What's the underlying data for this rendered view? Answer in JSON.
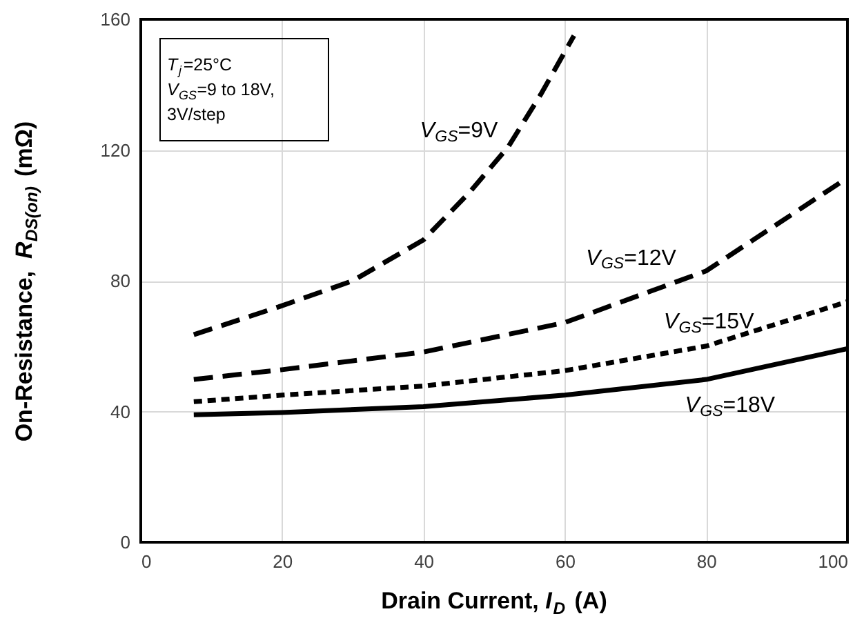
{
  "chart_data": {
    "type": "line",
    "xlabel": "Drain Current, I$_{D}$ (A)",
    "ylabel": "On-Resistance, R$_{DS(on)}$ (mΩ)",
    "xlim": [
      0,
      100
    ],
    "ylim": [
      0,
      160
    ],
    "xticks": [
      0,
      20,
      40,
      60,
      80,
      100
    ],
    "yticks": [
      0,
      40,
      80,
      120,
      160
    ],
    "grid": true,
    "marker": "none",
    "series": [
      {
        "x": [
          7.5,
          19.5,
          30,
          40,
          46.5,
          52,
          56.6,
          61.3
        ],
        "values": [
          63.5,
          72,
          80,
          92.5,
          107,
          121,
          137,
          155
        ],
        "color": "#000000",
        "line_style": "dashed"
      },
      {
        "x": [
          7.5,
          20,
          40,
          60,
          80,
          100
        ],
        "values": [
          49.8,
          52.8,
          58.2,
          67.2,
          83,
          111.5
        ],
        "color": "#000000",
        "line_style": "dashed"
      },
      {
        "x": [
          7.5,
          20,
          40,
          60,
          80,
          100
        ],
        "values": [
          43,
          45,
          47.8,
          52.5,
          60,
          73.6
        ],
        "color": "#000000",
        "line_style": "dotted"
      },
      {
        "x": [
          7.5,
          20,
          40,
          60,
          80,
          100
        ],
        "values": [
          39,
          39.7,
          41.5,
          45,
          49.8,
          59.2
        ],
        "color": "#000000",
        "line_style": "solid"
      }
    ],
    "annotations": [
      "T$_{j}$=25°C",
      "V$_{GS}$=9 to 18V,",
      "3V/step",
      "V$_{GS}$=9V",
      "V$_{GS}$=12V",
      "V$_{GS}$=15V",
      "V$_{GS}$=18V"
    ]
  }
}
